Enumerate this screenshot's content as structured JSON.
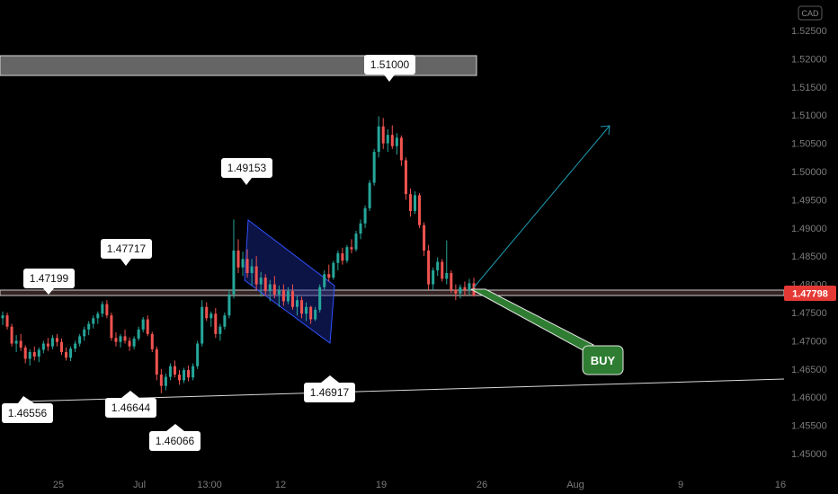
{
  "chart_data": {
    "type": "candlestick",
    "currency": "CAD",
    "current_price": "1.47798",
    "y_ticks": [
      "1.52500",
      "1.52000",
      "1.51500",
      "1.51000",
      "1.50500",
      "1.50000",
      "1.49500",
      "1.49000",
      "1.48500",
      "1.48000",
      "1.47500",
      "1.47000",
      "1.46500",
      "1.46000",
      "1.45500",
      "1.45000"
    ],
    "x_ticks": [
      "25",
      "Jul",
      "13:00",
      "12",
      "19",
      "26",
      "Aug",
      "9",
      "16"
    ],
    "callouts": {
      "top": "1.51000",
      "mid_high": "1.49153",
      "left_high": "1.47717",
      "support": "1.47199",
      "low_left": "1.46556",
      "low_mid": "1.46644",
      "low_min": "1.46066",
      "channel_low": "1.46917"
    },
    "buy_label": "BUY",
    "colors": {
      "up": "#26a69a",
      "down": "#ef5350",
      "bg": "#000000",
      "channel": "#1f3fd6",
      "target_arrow": "#1e9bb0",
      "buy": "#2e7d32"
    },
    "ohlc": [
      [
        1.474,
        1.4752,
        1.4728,
        1.4745
      ],
      [
        1.4745,
        1.475,
        1.472,
        1.4725
      ],
      [
        1.4725,
        1.473,
        1.469,
        1.4695
      ],
      [
        1.4695,
        1.471,
        1.468,
        1.47
      ],
      [
        1.47,
        1.4712,
        1.4682,
        1.4688
      ],
      [
        1.4688,
        1.4692,
        1.466,
        1.4668
      ],
      [
        1.4668,
        1.4685,
        1.4656,
        1.468
      ],
      [
        1.468,
        1.469,
        1.4665,
        1.4672
      ],
      [
        1.4672,
        1.4688,
        1.4662,
        1.4684
      ],
      [
        1.4684,
        1.47,
        1.4678,
        1.4695
      ],
      [
        1.4695,
        1.4705,
        1.4682,
        1.469
      ],
      [
        1.469,
        1.471,
        1.4685,
        1.4705
      ],
      [
        1.4705,
        1.4712,
        1.469,
        1.4698
      ],
      [
        1.4698,
        1.4704,
        1.4675,
        1.468
      ],
      [
        1.468,
        1.4688,
        1.4665,
        1.467
      ],
      [
        1.467,
        1.469,
        1.4664,
        1.4686
      ],
      [
        1.4686,
        1.47,
        1.468,
        1.4695
      ],
      [
        1.4695,
        1.4712,
        1.469,
        1.4708
      ],
      [
        1.4708,
        1.4725,
        1.47,
        1.472
      ],
      [
        1.472,
        1.4735,
        1.471,
        1.473
      ],
      [
        1.473,
        1.4745,
        1.4722,
        1.474
      ],
      [
        1.474,
        1.4752,
        1.473,
        1.4748
      ],
      [
        1.4748,
        1.477,
        1.4742,
        1.4765
      ],
      [
        1.4765,
        1.4772,
        1.474,
        1.4745
      ],
      [
        1.4745,
        1.475,
        1.47,
        1.4705
      ],
      [
        1.4705,
        1.4715,
        1.469,
        1.4698
      ],
      [
        1.4698,
        1.4712,
        1.4688,
        1.4708
      ],
      [
        1.4708,
        1.472,
        1.4695,
        1.47
      ],
      [
        1.47,
        1.4706,
        1.4682,
        1.469
      ],
      [
        1.469,
        1.4708,
        1.4685,
        1.4704
      ],
      [
        1.4704,
        1.4725,
        1.47,
        1.472
      ],
      [
        1.472,
        1.4742,
        1.4715,
        1.4738
      ],
      [
        1.4738,
        1.4745,
        1.4708,
        1.4712
      ],
      [
        1.4712,
        1.4716,
        1.468,
        1.4685
      ],
      [
        1.4685,
        1.469,
        1.463,
        1.464
      ],
      [
        1.464,
        1.465,
        1.4607,
        1.462
      ],
      [
        1.462,
        1.4642,
        1.4612,
        1.4636
      ],
      [
        1.4636,
        1.466,
        1.463,
        1.4655
      ],
      [
        1.4655,
        1.4665,
        1.4635,
        1.464
      ],
      [
        1.464,
        1.4648,
        1.4622,
        1.463
      ],
      [
        1.463,
        1.4652,
        1.4625,
        1.4648
      ],
      [
        1.4648,
        1.4656,
        1.4628,
        1.4635
      ],
      [
        1.4635,
        1.466,
        1.463,
        1.4655
      ],
      [
        1.4655,
        1.47,
        1.465,
        1.4695
      ],
      [
        1.4695,
        1.4772,
        1.469,
        1.476
      ],
      [
        1.476,
        1.4768,
        1.4735,
        1.474
      ],
      [
        1.474,
        1.4752,
        1.4725,
        1.4748
      ],
      [
        1.4748,
        1.4758,
        1.4705,
        1.4712
      ],
      [
        1.4712,
        1.473,
        1.47,
        1.4725
      ],
      [
        1.4725,
        1.475,
        1.472,
        1.4745
      ],
      [
        1.4745,
        1.479,
        1.474,
        1.4782
      ],
      [
        1.4782,
        1.4915,
        1.4775,
        1.486
      ],
      [
        1.486,
        1.488,
        1.482,
        1.483
      ],
      [
        1.483,
        1.4858,
        1.4815,
        1.4845
      ],
      [
        1.4845,
        1.4862,
        1.4812,
        1.482
      ],
      [
        1.482,
        1.4845,
        1.4798,
        1.4832
      ],
      [
        1.4832,
        1.485,
        1.479,
        1.48
      ],
      [
        1.48,
        1.4822,
        1.4778,
        1.4812
      ],
      [
        1.4812,
        1.4818,
        1.478,
        1.4788
      ],
      [
        1.4788,
        1.4808,
        1.477,
        1.48
      ],
      [
        1.48,
        1.4815,
        1.4775,
        1.4782
      ],
      [
        1.4782,
        1.4798,
        1.476,
        1.479
      ],
      [
        1.479,
        1.48,
        1.4762,
        1.477
      ],
      [
        1.477,
        1.4795,
        1.4765,
        1.4788
      ],
      [
        1.4788,
        1.48,
        1.4755,
        1.476
      ],
      [
        1.476,
        1.478,
        1.4745,
        1.4772
      ],
      [
        1.4772,
        1.4778,
        1.474,
        1.4748
      ],
      [
        1.4748,
        1.4768,
        1.4735,
        1.476
      ],
      [
        1.476,
        1.4762,
        1.473,
        1.4738
      ],
      [
        1.4738,
        1.476,
        1.4735,
        1.4755
      ],
      [
        1.4755,
        1.48,
        1.475,
        1.4795
      ],
      [
        1.4795,
        1.4825,
        1.479,
        1.4818
      ],
      [
        1.4818,
        1.4835,
        1.4805,
        1.4812
      ],
      [
        1.4812,
        1.4842,
        1.4808,
        1.4838
      ],
      [
        1.4838,
        1.486,
        1.4825,
        1.4855
      ],
      [
        1.4855,
        1.4865,
        1.4835,
        1.4842
      ],
      [
        1.4842,
        1.487,
        1.4838,
        1.4866
      ],
      [
        1.4866,
        1.488,
        1.4855,
        1.4862
      ],
      [
        1.4862,
        1.4895,
        1.4858,
        1.489
      ],
      [
        1.489,
        1.4915,
        1.488,
        1.4908
      ],
      [
        1.4908,
        1.494,
        1.49,
        1.4935
      ],
      [
        1.4935,
        1.4985,
        1.493,
        1.498
      ],
      [
        1.498,
        1.504,
        1.4975,
        1.5035
      ],
      [
        1.5035,
        1.5098,
        1.5025,
        1.508
      ],
      [
        1.508,
        1.5095,
        1.504,
        1.505
      ],
      [
        1.505,
        1.5075,
        1.5035,
        1.5065
      ],
      [
        1.5065,
        1.5082,
        1.504,
        1.5045
      ],
      [
        1.5045,
        1.5068,
        1.503,
        1.506
      ],
      [
        1.506,
        1.5064,
        1.501,
        1.502
      ],
      [
        1.502,
        1.5025,
        1.495,
        1.496
      ],
      [
        1.496,
        1.497,
        1.492,
        1.493
      ],
      [
        1.493,
        1.4965,
        1.4925,
        1.4958
      ],
      [
        1.4958,
        1.4962,
        1.49,
        1.4905
      ],
      [
        1.4905,
        1.491,
        1.485,
        1.486
      ],
      [
        1.486,
        1.487,
        1.479,
        1.48
      ],
      [
        1.48,
        1.483,
        1.479,
        1.4825
      ],
      [
        1.4825,
        1.4848,
        1.4815,
        1.484
      ],
      [
        1.484,
        1.4845,
        1.4805,
        1.481
      ],
      [
        1.481,
        1.4878,
        1.48,
        1.482
      ],
      [
        1.482,
        1.4825,
        1.4785,
        1.479
      ],
      [
        1.479,
        1.48,
        1.4772,
        1.4784
      ],
      [
        1.4784,
        1.48,
        1.4775,
        1.4795
      ],
      [
        1.4795,
        1.4805,
        1.478,
        1.479
      ],
      [
        1.479,
        1.481,
        1.4782,
        1.4802
      ],
      [
        1.4802,
        1.4812,
        1.4778,
        1.478
      ]
    ]
  }
}
